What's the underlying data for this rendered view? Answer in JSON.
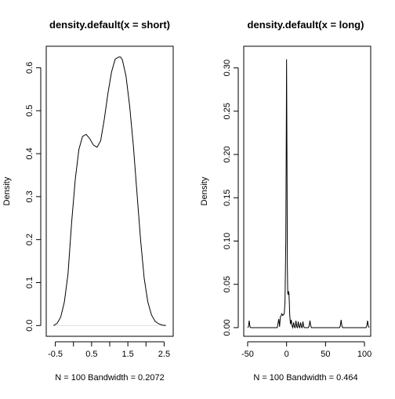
{
  "chart_data": [
    {
      "type": "line",
      "title": "density.default(x = short)",
      "xlabel": "N = 100   Bandwidth = 0.2072",
      "ylabel": "Density",
      "xlim": [
        -0.75,
        2.75
      ],
      "ylim": [
        -0.025,
        0.65
      ],
      "x_ticks": [
        -0.5,
        0,
        0.5,
        1,
        1.5,
        2,
        2.5
      ],
      "x_tick_labels": [
        "-0.5",
        "",
        "0.5",
        "",
        "1.5",
        "",
        "2.5"
      ],
      "y_ticks": [
        0.0,
        0.1,
        0.2,
        0.3,
        0.4,
        0.5,
        0.6
      ],
      "y_tick_labels": [
        "0.0",
        "0.1",
        "0.2",
        "0.3",
        "0.4",
        "0.5",
        "0.6"
      ],
      "baseline": true,
      "x": [
        -0.55,
        -0.45,
        -0.35,
        -0.25,
        -0.15,
        -0.05,
        0.05,
        0.15,
        0.25,
        0.35,
        0.45,
        0.55,
        0.65,
        0.75,
        0.85,
        0.95,
        1.05,
        1.15,
        1.25,
        1.3,
        1.35,
        1.45,
        1.55,
        1.65,
        1.75,
        1.85,
        1.95,
        2.05,
        2.15,
        2.25,
        2.35,
        2.45,
        2.55
      ],
      "y": [
        0.0,
        0.005,
        0.02,
        0.055,
        0.12,
        0.24,
        0.34,
        0.41,
        0.44,
        0.445,
        0.435,
        0.42,
        0.415,
        0.43,
        0.48,
        0.54,
        0.59,
        0.62,
        0.625,
        0.625,
        0.618,
        0.58,
        0.51,
        0.42,
        0.31,
        0.2,
        0.11,
        0.055,
        0.025,
        0.01,
        0.004,
        0.001,
        0.0
      ]
    },
    {
      "type": "line",
      "title": "density.default(x = long)",
      "xlabel": "N = 100   Bandwidth = 0.464",
      "ylabel": "Density",
      "xlim": [
        -55,
        108
      ],
      "ylim": [
        -0.01,
        0.325
      ],
      "x_ticks": [
        -50,
        0,
        50,
        100
      ],
      "x_tick_labels": [
        "-50",
        "0",
        "50",
        "100"
      ],
      "y_ticks": [
        0.0,
        0.05,
        0.1,
        0.15,
        0.2,
        0.25,
        0.3
      ],
      "y_tick_labels": [
        "0.00",
        "0.05",
        "0.10",
        "0.15",
        "0.20",
        "0.25",
        "0.30"
      ],
      "baseline": false,
      "x": [
        -50,
        -49,
        -48,
        -47,
        -46,
        -12,
        -10,
        -9,
        -8,
        -6,
        -5,
        -4,
        -3,
        -2,
        -1,
        -0.5,
        0,
        0.5,
        1,
        1.5,
        2,
        2.5,
        3,
        3.5,
        4,
        5,
        6,
        7,
        8,
        9,
        10,
        11,
        12,
        13,
        14,
        15,
        16,
        17,
        18,
        19,
        20,
        21,
        22,
        23,
        28,
        29,
        30,
        31,
        32,
        68,
        69,
        70,
        71,
        72,
        102,
        103,
        104,
        105,
        106
      ],
      "y": [
        0.0,
        0.001,
        0.008,
        0.001,
        0.0,
        0.0,
        0.01,
        0.001,
        0.012,
        0.016,
        0.014,
        0.015,
        0.016,
        0.03,
        0.1,
        0.2,
        0.31,
        0.2,
        0.07,
        0.04,
        0.038,
        0.042,
        0.04,
        0.03,
        0.015,
        0.004,
        0.009,
        0.002,
        0.0,
        0.006,
        0.001,
        0.0,
        0.008,
        0.001,
        0.0,
        0.007,
        0.001,
        0.0,
        0.006,
        0.001,
        0.0,
        0.007,
        0.001,
        0.0,
        0.0,
        0.002,
        0.008,
        0.002,
        0.0,
        0.0,
        0.002,
        0.009,
        0.002,
        0.0,
        0.0,
        0.002,
        0.008,
        0.002,
        0.0
      ]
    }
  ]
}
